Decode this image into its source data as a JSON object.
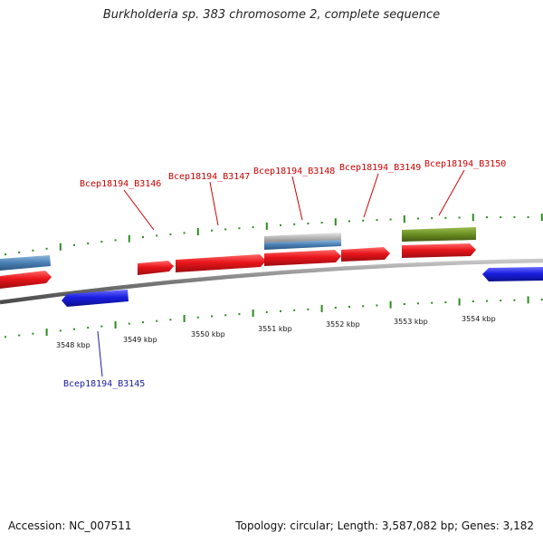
{
  "title": "Burkholderia sp. 383 chromosome 2, complete sequence",
  "accession": "Accession: NC_007511",
  "summary": "Topology: circular; Length: 3,587,082 bp; Genes: 3,182",
  "colors": {
    "forward_gene": "#e8151b",
    "reverse_gene": "#1a1fe0",
    "other_feature": "#4a7fb5",
    "pseudo_feature": "#b8b8b8",
    "rna_feature": "#6b8e23",
    "label_forward": "#cc0000",
    "label_reverse": "#1a1aaa",
    "tick": "#2e8b22",
    "backbone": "#8a8a8a"
  },
  "ticks": {
    "labels": [
      "3548 kbp",
      "3549 kbp",
      "3550 kbp",
      "3551 kbp",
      "3552 kbp",
      "3553 kbp",
      "3554 kbp"
    ]
  },
  "gene_labels": {
    "b3145": "Bcep18194_B3145",
    "b3146": "Bcep18194_B3146",
    "b3147": "Bcep18194_B3147",
    "b3148": "Bcep18194_B3148",
    "b3149": "Bcep18194_B3149",
    "b3150": "Bcep18194_B3150"
  }
}
